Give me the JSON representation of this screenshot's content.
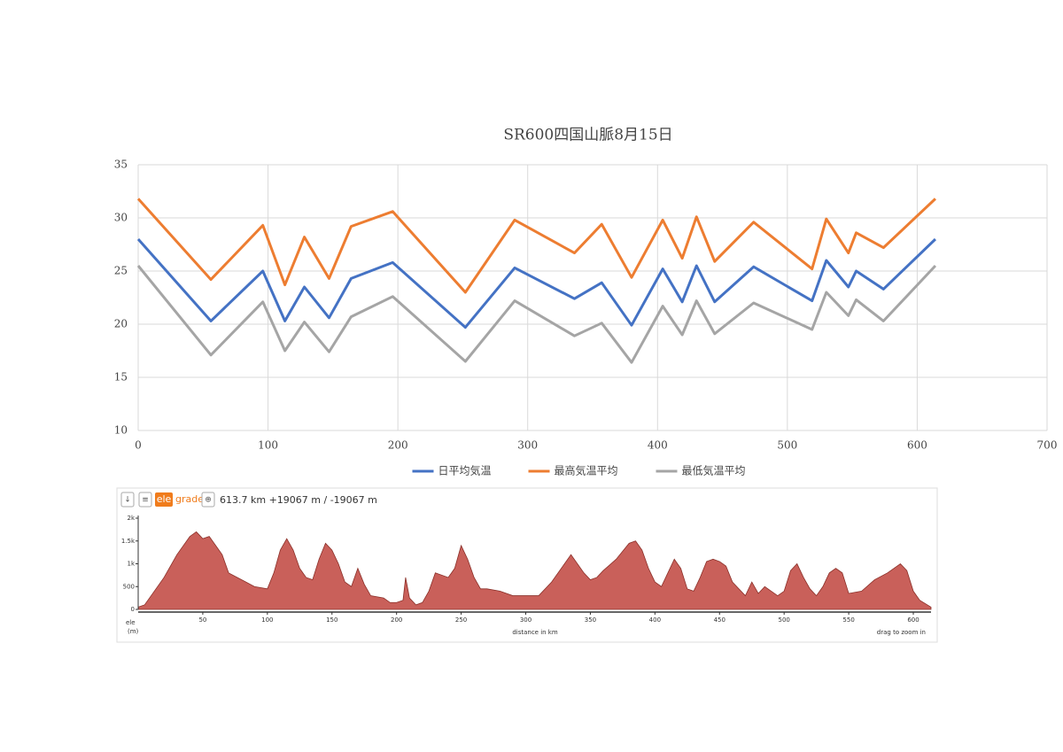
{
  "chart_data": [
    {
      "type": "line",
      "title": "SR600四国山脈8月15日",
      "x": [
        0,
        56,
        96,
        113,
        128,
        147,
        164,
        196,
        252,
        290,
        336,
        357,
        380,
        404,
        419,
        430,
        444,
        474,
        519,
        530,
        547,
        553,
        574,
        614
      ],
      "series": [
        {
          "name": "日平均気温",
          "color": "#4472c4",
          "values": [
            28.0,
            20.3,
            25.0,
            20.3,
            23.5,
            20.6,
            24.3,
            25.8,
            19.7,
            25.3,
            22.4,
            23.9,
            19.9,
            25.2,
            22.1,
            25.5,
            22.1,
            25.4,
            22.2,
            26.0,
            23.5,
            25.0,
            23.3,
            28.0
          ]
        },
        {
          "name": "最高気温平均",
          "color": "#ed7d31",
          "values": [
            31.8,
            24.2,
            29.3,
            23.7,
            28.2,
            24.3,
            29.2,
            30.6,
            23.0,
            29.8,
            26.7,
            29.4,
            24.4,
            29.8,
            26.2,
            30.1,
            25.9,
            29.6,
            25.2,
            29.9,
            26.7,
            28.6,
            27.2,
            31.8
          ]
        },
        {
          "name": "最低気温平均",
          "color": "#a5a5a5",
          "values": [
            25.5,
            17.1,
            22.1,
            17.5,
            20.2,
            17.4,
            20.7,
            22.6,
            16.5,
            22.2,
            18.9,
            20.1,
            16.4,
            21.7,
            19.0,
            22.2,
            19.1,
            22.0,
            19.5,
            23.0,
            20.8,
            22.3,
            20.3,
            25.5
          ]
        }
      ],
      "xlim": [
        0,
        700
      ],
      "xticks": [
        0,
        100,
        200,
        300,
        400,
        500,
        600,
        700
      ],
      "ylim": [
        10,
        35
      ],
      "yticks": [
        10,
        15,
        20,
        25,
        30,
        35
      ],
      "grid": true,
      "legend": "bottom"
    },
    {
      "type": "area",
      "mode_buttons": [
        "ele",
        "grade"
      ],
      "summary": "613.7 km +19067 m / -19067 m",
      "y_label": "ele",
      "y_unit": "(m)",
      "x_label": "distance in km",
      "hint": "drag to zoom in",
      "color": "#c9605a",
      "x": [
        0,
        5,
        10,
        20,
        30,
        40,
        45,
        50,
        55,
        60,
        65,
        70,
        80,
        90,
        100,
        105,
        110,
        115,
        120,
        125,
        130,
        135,
        140,
        145,
        150,
        155,
        160,
        165,
        170,
        175,
        180,
        190,
        195,
        200,
        205,
        207,
        210,
        215,
        220,
        225,
        230,
        240,
        245,
        250,
        255,
        260,
        265,
        270,
        280,
        290,
        300,
        310,
        320,
        330,
        335,
        340,
        345,
        350,
        355,
        360,
        370,
        380,
        385,
        390,
        395,
        400,
        405,
        410,
        415,
        420,
        425,
        430,
        435,
        440,
        445,
        450,
        455,
        460,
        470,
        475,
        480,
        485,
        490,
        495,
        500,
        505,
        510,
        515,
        520,
        525,
        530,
        535,
        540,
        545,
        550,
        560,
        570,
        580,
        590,
        595,
        600,
        605,
        613.7
      ],
      "values": [
        50,
        100,
        300,
        700,
        1200,
        1600,
        1700,
        1550,
        1600,
        1400,
        1200,
        800,
        650,
        500,
        450,
        800,
        1300,
        1550,
        1300,
        900,
        700,
        650,
        1100,
        1450,
        1300,
        1000,
        600,
        500,
        900,
        550,
        300,
        250,
        150,
        150,
        200,
        700,
        250,
        100,
        150,
        400,
        800,
        700,
        900,
        1400,
        1100,
        700,
        450,
        450,
        400,
        300,
        300,
        300,
        600,
        1000,
        1200,
        1000,
        800,
        650,
        700,
        850,
        1100,
        1450,
        1500,
        1300,
        900,
        600,
        500,
        800,
        1100,
        900,
        450,
        400,
        700,
        1050,
        1100,
        1050,
        950,
        600,
        300,
        600,
        350,
        500,
        400,
        300,
        400,
        850,
        1000,
        700,
        450,
        300,
        500,
        800,
        900,
        800,
        350,
        400,
        650,
        800,
        1000,
        850,
        400,
        200,
        50
      ],
      "xlim": [
        0,
        613.7
      ],
      "xticks": [
        50,
        100,
        150,
        200,
        250,
        300,
        350,
        400,
        450,
        500,
        550,
        600
      ],
      "ylim": [
        0,
        2000
      ],
      "yticks": [
        {
          "value": 0,
          "label": "0"
        },
        {
          "value": 500,
          "label": "500"
        },
        {
          "value": 1000,
          "label": "1k"
        },
        {
          "value": 1500,
          "label": "1.5k"
        },
        {
          "value": 2000,
          "label": "2k"
        }
      ]
    }
  ]
}
